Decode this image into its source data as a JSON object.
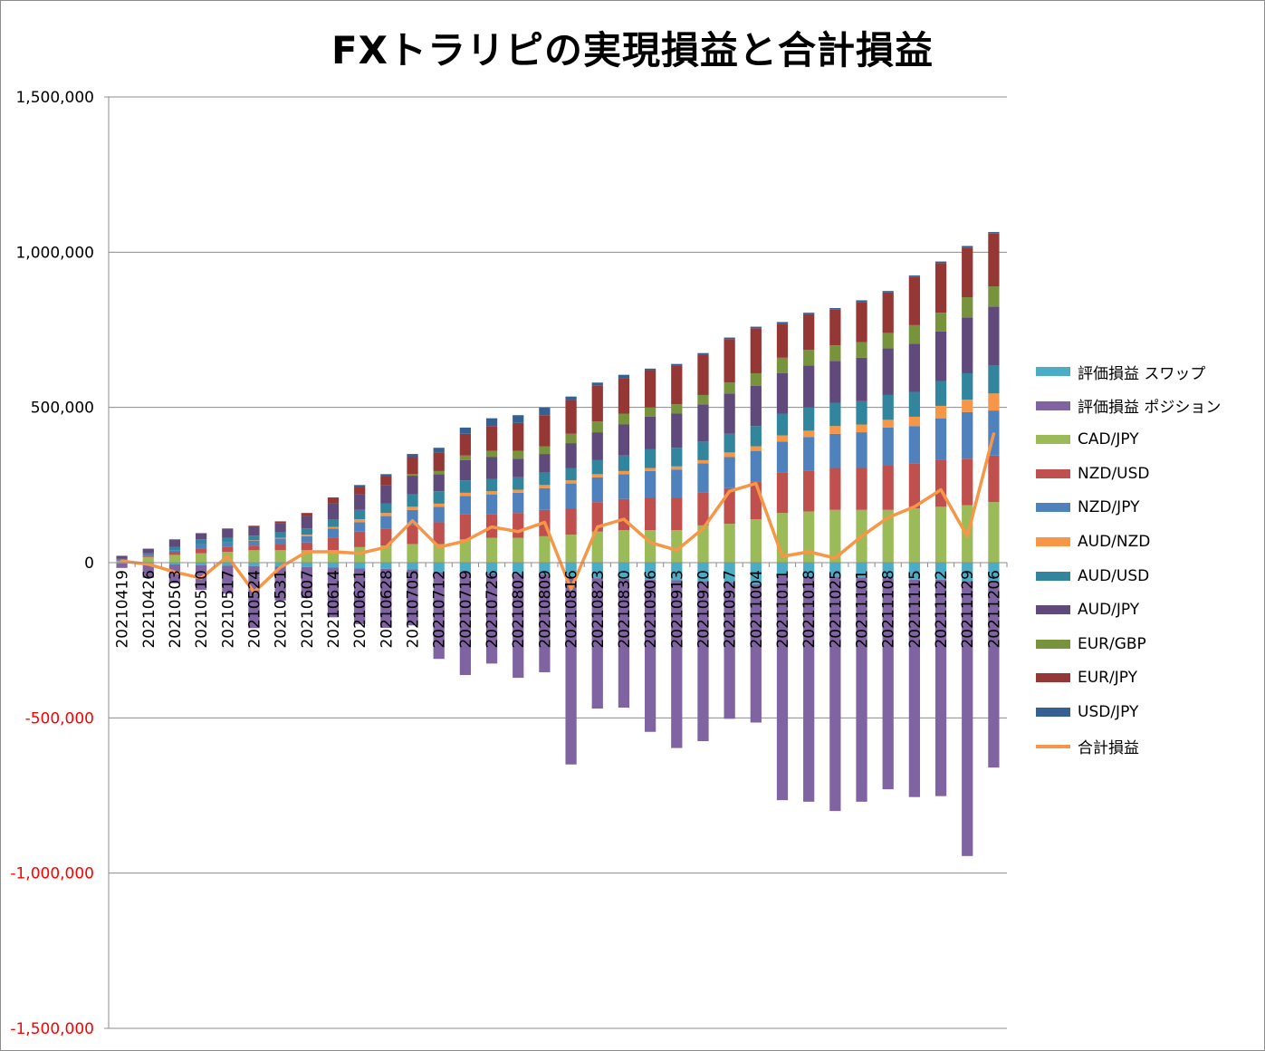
{
  "chart_data": {
    "type": "bar",
    "stacked": true,
    "title": "FXトラリピの実現損益と合計損益",
    "ylim": [
      -1500000,
      1500000
    ],
    "yticks": [
      1500000,
      1000000,
      500000,
      0,
      -500000,
      -1000000,
      -1500000
    ],
    "ytick_labels": [
      "1,500,000",
      "1,000,000",
      "500,000",
      "0",
      "-500,000",
      "-1,000,000",
      "-1,500,000"
    ],
    "negative_tick_color": "#ff0000",
    "grid": "horizontal",
    "legend_position": "right",
    "categories": [
      "20210419",
      "20210426",
      "20210503",
      "20210510",
      "20210517",
      "20210524",
      "20210531",
      "20210607",
      "20210614",
      "20210621",
      "20210628",
      "20210705",
      "20210712",
      "20210719",
      "20210726",
      "20210802",
      "20210809",
      "20210816",
      "20210823",
      "20210830",
      "20210906",
      "20210913",
      "20210920",
      "20210927",
      "20211004",
      "20211011",
      "20211018",
      "20211025",
      "20211101",
      "20211108",
      "20211115",
      "20211122",
      "20211129",
      "20211206"
    ],
    "series": [
      {
        "name": "評価損益 スワップ",
        "color": "#4bacc6",
        "values": [
          -2000,
          -4000,
          -6000,
          -8000,
          -10000,
          -11000,
          -12000,
          -14000,
          -16000,
          -18000,
          -20000,
          -22000,
          -30000,
          -32000,
          -35000,
          -36000,
          -38000,
          -45000,
          -50000,
          -52000,
          -55000,
          -57000,
          -60000,
          -63000,
          -70000,
          -40000,
          -45000,
          -45000,
          -48000,
          -50000,
          -55000,
          -55000,
          -60000,
          -60000
        ]
      },
      {
        "name": "評価損益 ポジション",
        "color": "#8064a2",
        "values": [
          -15000,
          -45000,
          -60000,
          -80000,
          -90000,
          -200000,
          -110000,
          -100000,
          -160000,
          -180000,
          -190000,
          -180000,
          -280000,
          -330000,
          -290000,
          -335000,
          -315000,
          -605000,
          -420000,
          -415000,
          -490000,
          -540000,
          -515000,
          -440000,
          -445000,
          -725000,
          -725000,
          -755000,
          -722000,
          -680000,
          -700000,
          -697000,
          -885000,
          -600000
        ]
      },
      {
        "name": "CAD/JPY",
        "color": "#9bbb59",
        "values": [
          5000,
          18000,
          25000,
          30000,
          35000,
          40000,
          40000,
          40000,
          40000,
          50000,
          55000,
          60000,
          60000,
          75000,
          80000,
          80000,
          85000,
          90000,
          100000,
          105000,
          105000,
          105000,
          120000,
          125000,
          140000,
          160000,
          165000,
          170000,
          170000,
          170000,
          175000,
          180000,
          185000,
          195000
        ]
      },
      {
        "name": "NZD/USD",
        "color": "#c0504d",
        "values": [
          2000,
          5000,
          10000,
          15000,
          15000,
          15000,
          20000,
          25000,
          40000,
          50000,
          55000,
          60000,
          70000,
          80000,
          75000,
          80000,
          85000,
          85000,
          95000,
          100000,
          105000,
          105000,
          105000,
          115000,
          120000,
          130000,
          130000,
          135000,
          135000,
          145000,
          145000,
          150000,
          150000,
          150000
        ]
      },
      {
        "name": "NZD/JPY",
        "color": "#4f81bd",
        "values": [
          2000,
          2000,
          5000,
          15000,
          15000,
          15000,
          18000,
          20000,
          30000,
          30000,
          40000,
          50000,
          50000,
          60000,
          65000,
          65000,
          70000,
          80000,
          80000,
          80000,
          85000,
          90000,
          95000,
          100000,
          100000,
          100000,
          110000,
          110000,
          115000,
          120000,
          120000,
          135000,
          150000,
          145000
        ]
      },
      {
        "name": "AUD/NZD",
        "color": "#f79646",
        "values": [
          0,
          0,
          0,
          0,
          0,
          2000,
          2000,
          5000,
          5000,
          10000,
          10000,
          10000,
          10000,
          10000,
          10000,
          10000,
          10000,
          10000,
          10000,
          10000,
          10000,
          10000,
          10000,
          15000,
          15000,
          20000,
          20000,
          25000,
          25000,
          25000,
          30000,
          40000,
          40000,
          55000
        ]
      },
      {
        "name": "AUD/USD",
        "color": "#31859c",
        "values": [
          3000,
          5000,
          10000,
          15000,
          15000,
          15000,
          18000,
          20000,
          25000,
          30000,
          30000,
          40000,
          40000,
          40000,
          40000,
          40000,
          40000,
          40000,
          45000,
          50000,
          60000,
          60000,
          60000,
          60000,
          65000,
          70000,
          75000,
          75000,
          75000,
          80000,
          80000,
          80000,
          85000,
          90000
        ]
      },
      {
        "name": "AUD/JPY",
        "color": "#604a7b",
        "values": [
          10000,
          15000,
          25000,
          20000,
          30000,
          30000,
          30000,
          40000,
          50000,
          50000,
          60000,
          60000,
          55000,
          65000,
          70000,
          60000,
          60000,
          80000,
          90000,
          100000,
          105000,
          110000,
          120000,
          130000,
          130000,
          130000,
          135000,
          135000,
          140000,
          150000,
          155000,
          160000,
          180000,
          190000
        ]
      },
      {
        "name": "EUR/GBP",
        "color": "#77933c",
        "values": [
          0,
          0,
          0,
          0,
          0,
          0,
          0,
          0,
          0,
          0,
          0,
          5000,
          10000,
          15000,
          20000,
          25000,
          25000,
          30000,
          35000,
          35000,
          30000,
          30000,
          30000,
          35000,
          40000,
          50000,
          50000,
          50000,
          50000,
          50000,
          60000,
          60000,
          65000,
          65000
        ]
      },
      {
        "name": "EUR/JPY",
        "color": "#953735",
        "values": [
          0,
          0,
          0,
          0,
          0,
          2000,
          5000,
          10000,
          20000,
          25000,
          30000,
          55000,
          60000,
          70000,
          80000,
          90000,
          100000,
          110000,
          115000,
          115000,
          120000,
          125000,
          130000,
          140000,
          145000,
          110000,
          115000,
          115000,
          130000,
          130000,
          155000,
          160000,
          160000,
          170000
        ]
      },
      {
        "name": "USD/JPY",
        "color": "#366092",
        "values": [
          0,
          0,
          0,
          0,
          0,
          0,
          0,
          0,
          0,
          5000,
          5000,
          10000,
          15000,
          20000,
          25000,
          25000,
          25000,
          10000,
          10000,
          10000,
          5000,
          5000,
          5000,
          5000,
          5000,
          5000,
          5000,
          5000,
          5000,
          5000,
          5000,
          5000,
          5000,
          5000
        ]
      }
    ],
    "line_series": {
      "name": "合計損益",
      "color": "#f79646",
      "values": [
        5000,
        -5000,
        -30000,
        -50000,
        20000,
        -95000,
        -15000,
        35000,
        35000,
        30000,
        50000,
        135000,
        50000,
        70000,
        115000,
        100000,
        130000,
        -85000,
        115000,
        140000,
        65000,
        40000,
        110000,
        230000,
        255000,
        20000,
        35000,
        15000,
        85000,
        145000,
        180000,
        235000,
        85000,
        415000
      ]
    }
  }
}
